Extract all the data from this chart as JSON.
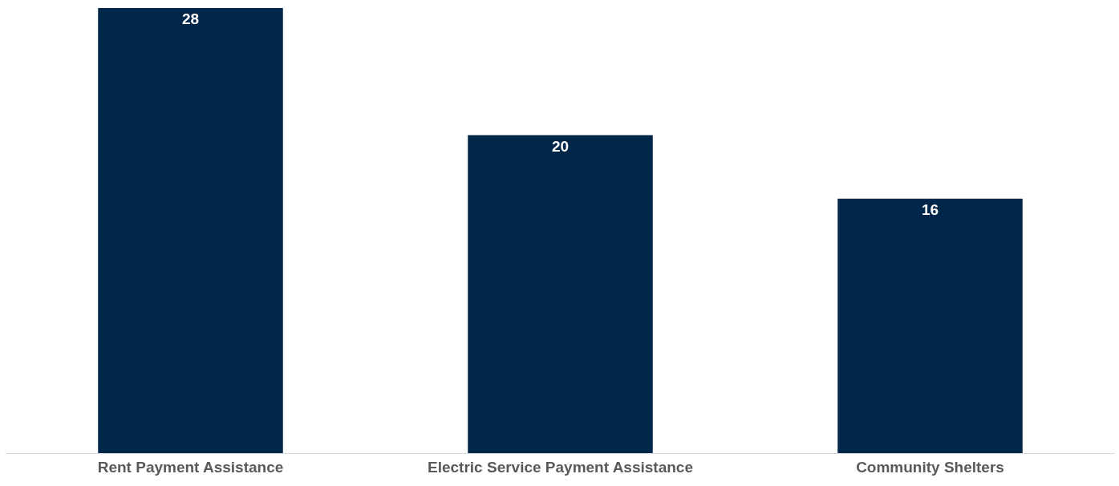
{
  "chart_data": {
    "type": "bar",
    "categories": [
      "Rent Payment Assistance",
      "Electric Service Payment Assistance",
      "Community Shelters"
    ],
    "values": [
      28,
      20,
      16
    ],
    "color": "#002649",
    "ylim": [
      0,
      28
    ],
    "tick_labels": "x",
    "data_labels": true
  }
}
